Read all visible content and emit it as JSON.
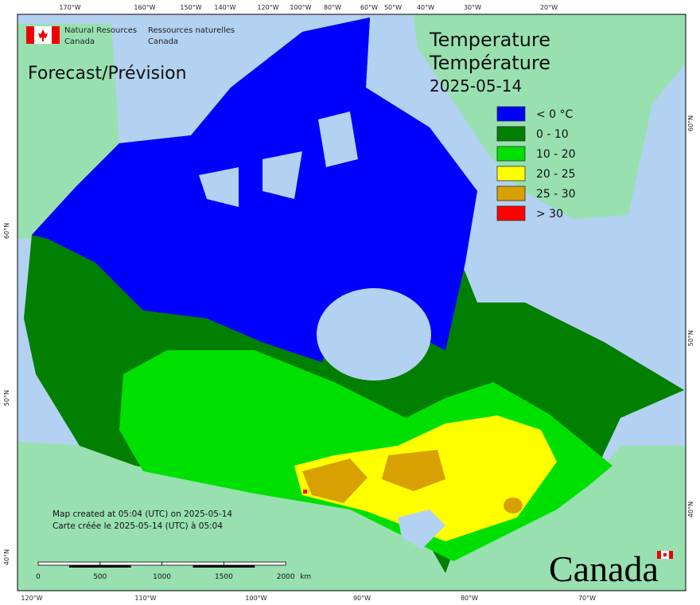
{
  "department": {
    "en_line1": "Natural Resources",
    "en_line2": "Canada",
    "fr_line1": "Ressources naturelles",
    "fr_line2": "Canada"
  },
  "product": "Forecast/Prévision",
  "title": {
    "en": "Temperature",
    "fr": "Température",
    "date": "2025-05-14"
  },
  "legend": [
    {
      "label": "< 0 °C",
      "color": "#0000ff"
    },
    {
      "label": "0 - 10",
      "color": "#007f00"
    },
    {
      "label": "10 - 20",
      "color": "#00e000"
    },
    {
      "label": "20 - 25",
      "color": "#ffff00"
    },
    {
      "label": "25 - 30",
      "color": "#d8a000"
    },
    {
      "label": "> 30",
      "color": "#ff0000"
    }
  ],
  "footer": {
    "created_en": "Map created at 05:04 (UTC) on 2025-05-14",
    "created_fr": "Carte créée le 2025-05-14 (UTC) à 05:04"
  },
  "scale_bar": {
    "labels": [
      "0",
      "500",
      "1000",
      "1500",
      "2000"
    ],
    "unit": "km"
  },
  "graticule": {
    "top": [
      "170°W",
      "160°W",
      "150°W",
      "140°W",
      "120°W",
      "100°W",
      "80°W",
      "60°W",
      "50°W",
      "40°W",
      "30°W",
      "20°W"
    ],
    "bottom": [
      "120°W",
      "110°W",
      "100°W",
      "90°W",
      "80°W",
      "70°W"
    ],
    "left": [
      "60°N",
      "50°N",
      "40°N"
    ],
    "right": [
      "60°N",
      "50°N",
      "40°N"
    ]
  },
  "wordmark": "Canada"
}
